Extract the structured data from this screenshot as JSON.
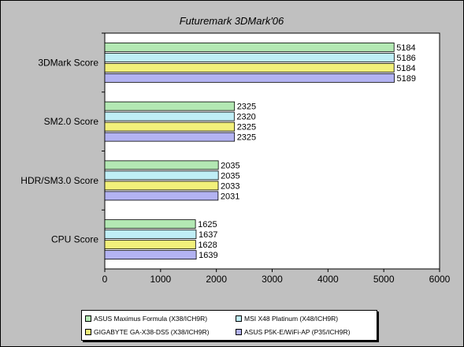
{
  "chart_data": {
    "type": "bar",
    "orientation": "horizontal",
    "title": "Futuremark 3DMark'06",
    "categories": [
      "3DMark Score",
      "SM2.0 Score",
      "HDR/SM3.0 Score",
      "CPU Score"
    ],
    "series": [
      {
        "name": "ASUS Maximus Formula (X38/ICH9R)",
        "color": "#b3e8b3",
        "values": [
          5184,
          2325,
          2035,
          1625
        ]
      },
      {
        "name": "MSI X48 Platinum (X48/ICH9R)",
        "color": "#bfeef6",
        "values": [
          5186,
          2320,
          2035,
          1637
        ]
      },
      {
        "name": "GIGABYTE GA-X38-DS5 (X38/ICH9R)",
        "color": "#f2f07a",
        "values": [
          5184,
          2325,
          2033,
          1628
        ]
      },
      {
        "name": "ASUS P5K-E/WiFi-AP (P35/ICH9R)",
        "color": "#b3b3f2",
        "values": [
          5189,
          2325,
          2031,
          1639
        ]
      }
    ],
    "x_ticks": [
      0,
      1000,
      2000,
      3000,
      4000,
      5000,
      6000
    ],
    "xlim": [
      0,
      6000
    ],
    "grid": false,
    "legend_position": "bottom"
  },
  "colors": {
    "chart_background": "#c0c0c0",
    "plot_background": "#ffffff"
  }
}
